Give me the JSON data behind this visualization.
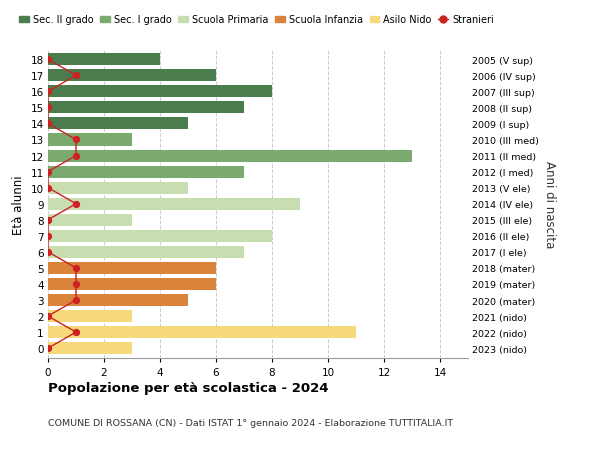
{
  "ages": [
    18,
    17,
    16,
    15,
    14,
    13,
    12,
    11,
    10,
    9,
    8,
    7,
    6,
    5,
    4,
    3,
    2,
    1,
    0
  ],
  "bar_values": [
    4,
    6,
    8,
    7,
    5,
    3,
    13,
    7,
    5,
    9,
    3,
    8,
    7,
    6,
    6,
    5,
    3,
    11,
    3
  ],
  "bar_colors": [
    "#4a7c4e",
    "#4a7c4e",
    "#4a7c4e",
    "#4a7c4e",
    "#4a7c4e",
    "#7aaa6e",
    "#7aaa6e",
    "#7aaa6e",
    "#c8ddb0",
    "#c8ddb0",
    "#c8ddb0",
    "#c8ddb0",
    "#c8ddb0",
    "#d9843a",
    "#d9843a",
    "#d9843a",
    "#f5d97a",
    "#f5d97a",
    "#f5d97a"
  ],
  "stranieri_values": [
    0,
    1,
    0,
    0,
    0,
    1,
    1,
    0,
    0,
    1,
    0,
    0,
    0,
    1,
    1,
    1,
    0,
    1,
    0
  ],
  "right_labels": [
    "2005 (V sup)",
    "2006 (IV sup)",
    "2007 (III sup)",
    "2008 (II sup)",
    "2009 (I sup)",
    "2010 (III med)",
    "2011 (II med)",
    "2012 (I med)",
    "2013 (V ele)",
    "2014 (IV ele)",
    "2015 (III ele)",
    "2016 (II ele)",
    "2017 (I ele)",
    "2018 (mater)",
    "2019 (mater)",
    "2020 (mater)",
    "2021 (nido)",
    "2022 (nido)",
    "2023 (nido)"
  ],
  "legend_labels": [
    "Sec. II grado",
    "Sec. I grado",
    "Scuola Primaria",
    "Scuola Infanzia",
    "Asilo Nido",
    "Stranieri"
  ],
  "legend_colors": [
    "#4a7c4e",
    "#7aaa6e",
    "#c8ddb0",
    "#d9843a",
    "#f5d97a",
    "#cc2222"
  ],
  "ylabel": "Età alunni",
  "right_ylabel": "Anni di nascita",
  "title": "Popolazione per età scolastica - 2024",
  "subtitle": "COMUNE DI ROSSANA (CN) - Dati ISTAT 1° gennaio 2024 - Elaborazione TUTTITALIA.IT",
  "xlim": [
    0,
    15
  ],
  "bar_height": 0.75,
  "xticks": [
    0,
    2,
    4,
    6,
    8,
    10,
    12,
    14
  ]
}
